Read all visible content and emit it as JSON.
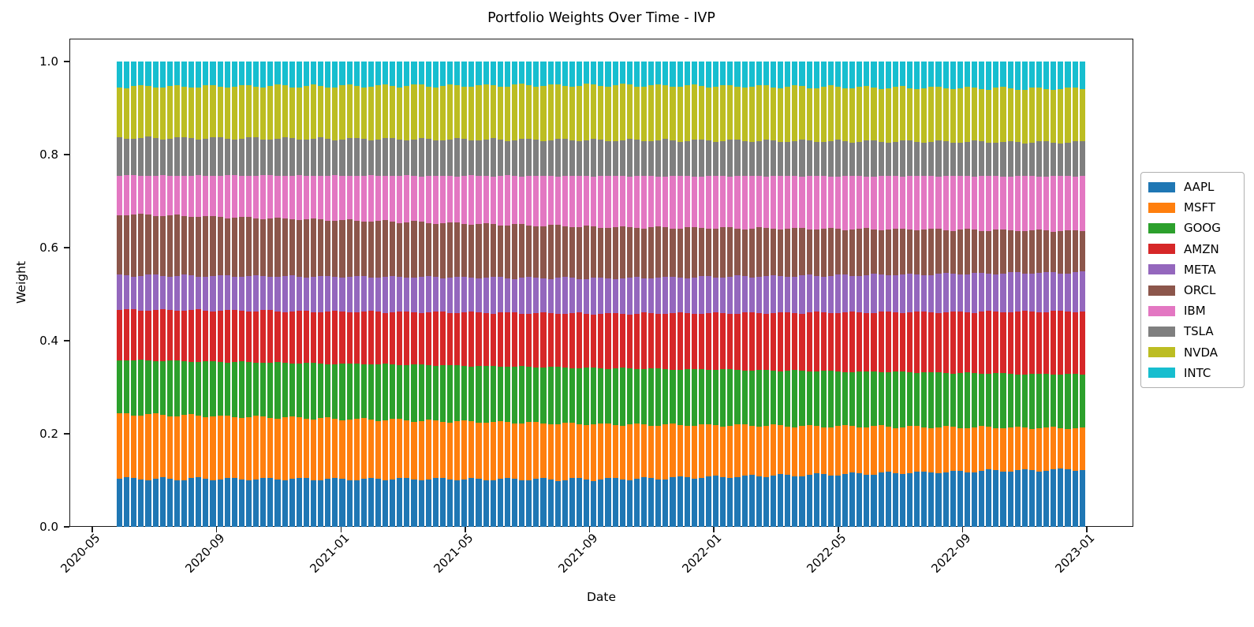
{
  "chart_data": {
    "type": "bar",
    "variant": "stacked-vertical-time-series",
    "title": "Portfolio Weights Over Time - IVP",
    "xlabel": "Date",
    "ylabel": "Weight",
    "ylim": [
      0.0,
      1.0
    ],
    "grid": false,
    "ytick_labels": [
      "0.0",
      "0.2",
      "0.4",
      "0.6",
      "0.8",
      "1.0"
    ],
    "ytick_values": [
      0.0,
      0.2,
      0.4,
      0.6,
      0.8,
      1.0
    ],
    "xtick_labels": [
      "2020-05",
      "2020-09",
      "2021-01",
      "2021-05",
      "2021-09",
      "2022-01",
      "2022-05",
      "2022-09",
      "2023-01"
    ],
    "xtick_rotation_deg": 45,
    "bars": {
      "count": 135,
      "frequency": "weekly",
      "first_bar_date": "2020-06-01",
      "last_bar_date": "2022-12-26",
      "bar_total": 1.0
    },
    "legend": {
      "position": "right-outside-center",
      "entries": [
        "AAPL",
        "MSFT",
        "GOOG",
        "AMZN",
        "META",
        "ORCL",
        "IBM",
        "TSLA",
        "NVDA",
        "INTC"
      ]
    },
    "series_note": "Weights are nearly constant with slow drift; anchor_weights give values read from chart at start (2020-06), middle (2021-09) and end (2022-12). Stack order bottom-to-top follows array order.",
    "series": [
      {
        "name": "AAPL",
        "color": "#1f77b4",
        "anchor_dates": [
          "2020-06-01",
          "2021-09-06",
          "2022-12-26"
        ],
        "anchor_weights": [
          0.103,
          0.102,
          0.124
        ]
      },
      {
        "name": "MSFT",
        "color": "#ff7f0e",
        "anchor_dates": [
          "2020-06-01",
          "2021-09-06",
          "2022-12-26"
        ],
        "anchor_weights": [
          0.139,
          0.118,
          0.088
        ]
      },
      {
        "name": "GOOG",
        "color": "#2ca02c",
        "anchor_dates": [
          "2020-06-01",
          "2021-09-06",
          "2022-12-26"
        ],
        "anchor_weights": [
          0.116,
          0.121,
          0.115
        ]
      },
      {
        "name": "AMZN",
        "color": "#d62728",
        "anchor_dates": [
          "2020-06-01",
          "2021-09-06",
          "2022-12-26"
        ],
        "anchor_weights": [
          0.108,
          0.117,
          0.136
        ]
      },
      {
        "name": "META",
        "color": "#9467bd",
        "anchor_dates": [
          "2020-06-01",
          "2021-09-06",
          "2022-12-26"
        ],
        "anchor_weights": [
          0.074,
          0.076,
          0.084
        ]
      },
      {
        "name": "ORCL",
        "color": "#8c564b",
        "anchor_dates": [
          "2020-06-01",
          "2021-09-06",
          "2022-12-26"
        ],
        "anchor_weights": [
          0.131,
          0.11,
          0.089
        ]
      },
      {
        "name": "IBM",
        "color": "#e377c2",
        "anchor_dates": [
          "2020-06-01",
          "2021-09-06",
          "2022-12-26"
        ],
        "anchor_weights": [
          0.083,
          0.11,
          0.118
        ]
      },
      {
        "name": "TSLA",
        "color": "#7f7f7f",
        "anchor_dates": [
          "2020-06-01",
          "2021-09-06",
          "2022-12-26"
        ],
        "anchor_weights": [
          0.081,
          0.077,
          0.072
        ]
      },
      {
        "name": "NVDA",
        "color": "#bcbd22",
        "anchor_dates": [
          "2020-06-01",
          "2021-09-06",
          "2022-12-26"
        ],
        "anchor_weights": [
          0.11,
          0.118,
          0.115
        ]
      },
      {
        "name": "INTC",
        "color": "#17becf",
        "anchor_dates": [
          "2020-06-01",
          "2021-09-06",
          "2022-12-26"
        ],
        "anchor_weights": [
          0.054,
          0.051,
          0.059
        ]
      }
    ],
    "colors": {
      "text": "#000000",
      "spine": "#1a1a1a",
      "background": "#ffffff",
      "legend_border": "#b0b0b0"
    }
  }
}
